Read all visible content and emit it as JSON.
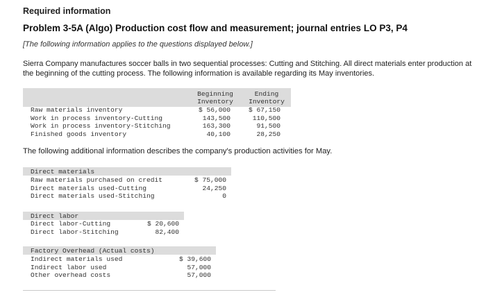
{
  "header": {
    "required": "Required information",
    "problem_title": "Problem 3-5A (Algo) Production cost flow and measurement; journal entries LO P3, P4",
    "note": "[The following information applies to the questions displayed below.]"
  },
  "intro": "Sierra Company manufactures soccer balls in two sequential processes: Cutting and Stitching. All direct materials enter production at the beginning of the cutting process. The following information is available regarding its May inventories.",
  "inventory_table": {
    "col_beginning_1": "Beginning",
    "col_beginning_2": "Inventory",
    "col_ending_1": "Ending",
    "col_ending_2": "Inventory",
    "rows": [
      {
        "label": "Raw materials inventory",
        "beginning": "$ 56,000",
        "ending": "$ 67,150"
      },
      {
        "label": "Work in process inventory-Cutting",
        "beginning": "143,500",
        "ending": "110,500"
      },
      {
        "label": "Work in process inventory-Stitching",
        "beginning": "163,300",
        "ending": "91,500"
      },
      {
        "label": "Finished goods inventory",
        "beginning": "40,100",
        "ending": "28,250"
      }
    ]
  },
  "additional_text": "The following additional information describes the company's production activities for May.",
  "direct_materials": {
    "heading": "Direct materials",
    "rows": [
      {
        "label": "Raw materials purchased on credit",
        "value": "$ 75,000"
      },
      {
        "label": "Direct materials used-Cutting",
        "value": "24,250"
      },
      {
        "label": "Direct materials used-Stitching",
        "value": "0"
      }
    ]
  },
  "direct_labor": {
    "heading": "Direct labor",
    "rows": [
      {
        "label": "Direct labor-Cutting",
        "value": "$ 20,600"
      },
      {
        "label": "Direct labor-Stitching",
        "value": "82,400"
      }
    ]
  },
  "factory_overhead": {
    "heading": "Factory Overhead (Actual costs)",
    "rows": [
      {
        "label": "Indirect materials used",
        "value": "$ 39,600"
      },
      {
        "label": "Indirect labor used",
        "value": "57,000"
      },
      {
        "label": "Other overhead costs",
        "value": "57,000"
      }
    ]
  }
}
